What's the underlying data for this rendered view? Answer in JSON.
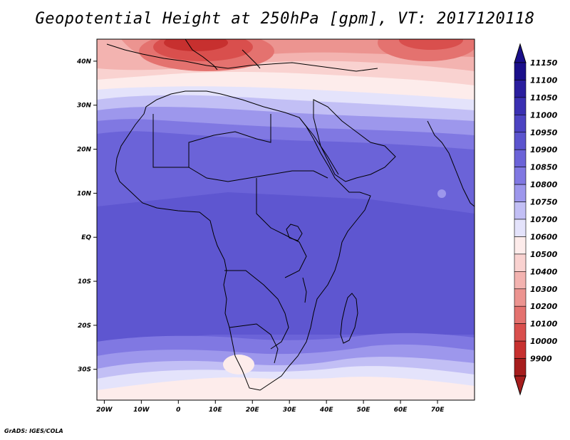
{
  "title": "Geopotential Height at 250hPa [gpm], VT: 2017120118",
  "footer": "GrADS: IGES/COLA",
  "map": {
    "lon_range": [
      -22,
      80
    ],
    "lat_range": [
      -37,
      45
    ],
    "lat_ticks": [
      {
        "value": 40,
        "label": "40N"
      },
      {
        "value": 30,
        "label": "30N"
      },
      {
        "value": 20,
        "label": "20N"
      },
      {
        "value": 10,
        "label": "10N"
      },
      {
        "value": 0,
        "label": "EQ"
      },
      {
        "value": -10,
        "label": "10S"
      },
      {
        "value": -20,
        "label": "20S"
      },
      {
        "value": -30,
        "label": "30S"
      }
    ],
    "lon_ticks": [
      {
        "value": -20,
        "label": "20W"
      },
      {
        "value": -10,
        "label": "10W"
      },
      {
        "value": 0,
        "label": "0"
      },
      {
        "value": 10,
        "label": "10E"
      },
      {
        "value": 20,
        "label": "20E"
      },
      {
        "value": 30,
        "label": "30E"
      },
      {
        "value": 40,
        "label": "40E"
      },
      {
        "value": 50,
        "label": "50E"
      },
      {
        "value": 60,
        "label": "60E"
      },
      {
        "value": 70,
        "label": "70E"
      }
    ]
  },
  "colorbar": {
    "levels": [
      {
        "label": "11150",
        "color": "#1a0f8a"
      },
      {
        "label": "11100",
        "color": "#2a1e9e"
      },
      {
        "label": "11050",
        "color": "#3a30b2"
      },
      {
        "label": "11000",
        "color": "#4c43c2"
      },
      {
        "label": "10950",
        "color": "#5b54ce"
      },
      {
        "label": "10900",
        "color": "#6b63d8"
      },
      {
        "label": "10850",
        "color": "#8078e2"
      },
      {
        "label": "10800",
        "color": "#9d97ec"
      },
      {
        "label": "10750",
        "color": "#c2bff5"
      },
      {
        "label": "10700",
        "color": "#e4e3fb"
      },
      {
        "label": "10600",
        "color": "#fdeceb"
      },
      {
        "label": "10500",
        "color": "#f9d2d0"
      },
      {
        "label": "10400",
        "color": "#f3b3b0"
      },
      {
        "label": "10300",
        "color": "#ec9490"
      },
      {
        "label": "10200",
        "color": "#e4726f"
      },
      {
        "label": "10100",
        "color": "#d94f4d"
      },
      {
        "label": "10000",
        "color": "#c7302f"
      },
      {
        "label": "9900",
        "color": "#a61d1d"
      }
    ]
  }
}
